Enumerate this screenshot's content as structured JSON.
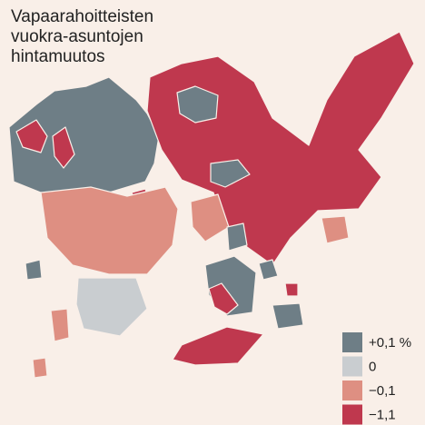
{
  "title": [
    "Vapaarahoitteisten",
    "vuokra-asuntojen",
    "hintamuutos"
  ],
  "legend": {
    "items": [
      {
        "label": "+0,1 %",
        "color": "#6e7e86"
      },
      {
        "label": "0",
        "color": "#c9cdd0"
      },
      {
        "label": "−0,1",
        "color": "#de8f82"
      },
      {
        "label": "−1,1",
        "color": "#bf384e"
      }
    ]
  }
}
